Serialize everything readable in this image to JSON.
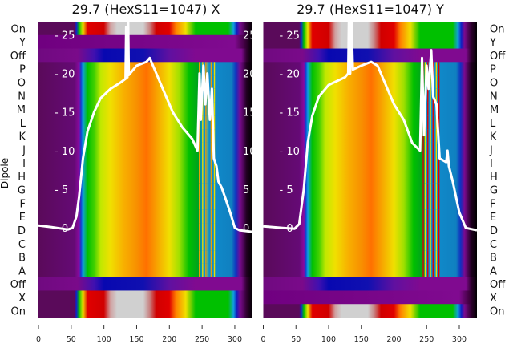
{
  "chart_data": {
    "type": "heatmap",
    "ylabel": "Dipole",
    "xticks": [
      0,
      50,
      100,
      150,
      200,
      250,
      300
    ],
    "xlim": [
      0,
      327
    ],
    "inner_yticks": [
      0,
      5,
      10,
      15,
      20,
      25
    ],
    "inner_ylim": [
      -11.6,
      26.7
    ],
    "row_labels": [
      "On",
      "Y",
      "Off",
      "P",
      "O",
      "N",
      "M",
      "L",
      "K",
      "J",
      "I",
      "H",
      "G",
      "F",
      "E",
      "D",
      "C",
      "B",
      "A",
      "Off",
      "X",
      "On"
    ],
    "profiles": {
      "dipole": [
        [
          0,
          "#5a0a5a"
        ],
        [
          55,
          "#650a75"
        ],
        [
          62,
          "#8a0aa0"
        ],
        [
          65,
          "#1040d0"
        ],
        [
          68,
          "#10a0e0"
        ],
        [
          75,
          "#00c000"
        ],
        [
          85,
          "#40d000"
        ],
        [
          95,
          "#c0e800"
        ],
        [
          110,
          "#f0e000"
        ],
        [
          130,
          "#f8b000"
        ],
        [
          150,
          "#f89000"
        ],
        [
          165,
          "#ff7000"
        ],
        [
          180,
          "#f8a000"
        ],
        [
          200,
          "#f0e000"
        ],
        [
          215,
          "#a0e000"
        ],
        [
          230,
          "#00c000"
        ],
        [
          245,
          "#00a020"
        ],
        [
          250,
          "#1090d0"
        ],
        [
          295,
          "#1080c0"
        ],
        [
          302,
          "#1030c0"
        ],
        [
          308,
          "#7a0a90"
        ],
        [
          318,
          "#200020"
        ],
        [
          327,
          "#000000"
        ]
      ],
      "on": [
        [
          0,
          "#5a0a5a"
        ],
        [
          55,
          "#5a0a5a"
        ],
        [
          58,
          "#1020d0"
        ],
        [
          62,
          "#00c000"
        ],
        [
          68,
          "#f0e000"
        ],
        [
          75,
          "#e00000"
        ],
        [
          100,
          "#d00000"
        ],
        [
          110,
          "#d0a0a0"
        ],
        [
          120,
          "#d0d0d0"
        ],
        [
          160,
          "#d0d0d0"
        ],
        [
          170,
          "#c88080"
        ],
        [
          180,
          "#d00000"
        ],
        [
          200,
          "#e00000"
        ],
        [
          210,
          "#ff8000"
        ],
        [
          225,
          "#f0e000"
        ],
        [
          240,
          "#00c000"
        ],
        [
          290,
          "#00c000"
        ],
        [
          298,
          "#10a0e0"
        ],
        [
          303,
          "#1020c0"
        ],
        [
          308,
          "#7a0a90"
        ],
        [
          318,
          "#300030"
        ],
        [
          327,
          "#000000"
        ]
      ],
      "off": [
        [
          0,
          "#700a80"
        ],
        [
          60,
          "#7a0a8a"
        ],
        [
          85,
          "#4010b0"
        ],
        [
          100,
          "#0808b0"
        ],
        [
          160,
          "#1010b0"
        ],
        [
          200,
          "#6010a0"
        ],
        [
          240,
          "#800a90"
        ],
        [
          310,
          "#800a90"
        ],
        [
          318,
          "#300030"
        ],
        [
          327,
          "#000000"
        ]
      ],
      "empty": [
        [
          0,
          "#700080"
        ],
        [
          300,
          "#800a90"
        ],
        [
          315,
          "#400040"
        ],
        [
          327,
          "#000000"
        ]
      ]
    },
    "panels": [
      {
        "title": "29.7 (HexS11=1047) X",
        "label_side": "left",
        "row_types": [
          "on",
          "empty",
          "off",
          "dipole",
          "dipole",
          "dipole",
          "dipole",
          "dipole",
          "dipole",
          "dipole",
          "dipole",
          "dipole",
          "dipole",
          "dipole",
          "dipole",
          "dipole",
          "dipole",
          "dipole",
          "dipole",
          "off",
          "on",
          "on"
        ],
        "stripes": [
          245,
          250,
          255,
          258,
          263,
          268
        ],
        "line": [
          [
            0,
            0.3
          ],
          [
            20,
            0.1
          ],
          [
            45,
            -0.2
          ],
          [
            52,
            0
          ],
          [
            58,
            1.5
          ],
          [
            62,
            4
          ],
          [
            68,
            9
          ],
          [
            75,
            12.5
          ],
          [
            85,
            15
          ],
          [
            95,
            16.8
          ],
          [
            110,
            18
          ],
          [
            125,
            18.8
          ],
          [
            133,
            19.3
          ],
          [
            134,
            26
          ],
          [
            136,
            19.5
          ],
          [
            137,
            27
          ],
          [
            138,
            19.8
          ],
          [
            150,
            21
          ],
          [
            165,
            21.5
          ],
          [
            170,
            22
          ],
          [
            180,
            20
          ],
          [
            190,
            18
          ],
          [
            205,
            15
          ],
          [
            220,
            13
          ],
          [
            235,
            11.5
          ],
          [
            243,
            10
          ],
          [
            246,
            20
          ],
          [
            248,
            14
          ],
          [
            252,
            21
          ],
          [
            255,
            16
          ],
          [
            258,
            20
          ],
          [
            262,
            14
          ],
          [
            265,
            18
          ],
          [
            268,
            9
          ],
          [
            272,
            8
          ],
          [
            275,
            6
          ],
          [
            280,
            5.2
          ],
          [
            285,
            4
          ],
          [
            293,
            2
          ],
          [
            300,
            0
          ],
          [
            307,
            -0.3
          ],
          [
            327,
            -0.5
          ]
        ]
      },
      {
        "title": "29.7 (HexS11=1047) Y",
        "label_side": "right",
        "row_types": [
          "on",
          "on",
          "off",
          "dipole",
          "dipole",
          "dipole",
          "dipole",
          "dipole",
          "dipole",
          "dipole",
          "dipole",
          "dipole",
          "dipole",
          "dipole",
          "dipole",
          "dipole",
          "dipole",
          "dipole",
          "dipole",
          "off",
          "empty",
          "on"
        ],
        "stripes": [
          244,
          247,
          251,
          255,
          259,
          264,
          268
        ],
        "line": [
          [
            0,
            0.2
          ],
          [
            30,
            0
          ],
          [
            48,
            -0.1
          ],
          [
            55,
            0.5
          ],
          [
            62,
            5
          ],
          [
            68,
            11
          ],
          [
            75,
            14.5
          ],
          [
            85,
            17
          ],
          [
            100,
            18.5
          ],
          [
            125,
            19.5
          ],
          [
            130,
            20
          ],
          [
            131,
            27
          ],
          [
            133,
            20
          ],
          [
            135,
            27
          ],
          [
            137,
            20.5
          ],
          [
            150,
            21
          ],
          [
            165,
            21.5
          ],
          [
            175,
            21
          ],
          [
            185,
            19
          ],
          [
            200,
            16
          ],
          [
            215,
            14
          ],
          [
            228,
            11
          ],
          [
            240,
            10
          ],
          [
            243,
            22
          ],
          [
            246,
            12
          ],
          [
            250,
            21
          ],
          [
            253,
            18
          ],
          [
            257,
            23
          ],
          [
            260,
            17
          ],
          [
            265,
            16
          ],
          [
            270,
            9
          ],
          [
            280,
            8.5
          ],
          [
            282,
            10
          ],
          [
            284,
            8
          ],
          [
            290,
            6
          ],
          [
            300,
            2
          ],
          [
            310,
            0
          ],
          [
            327,
            -0.3
          ]
        ]
      }
    ]
  }
}
